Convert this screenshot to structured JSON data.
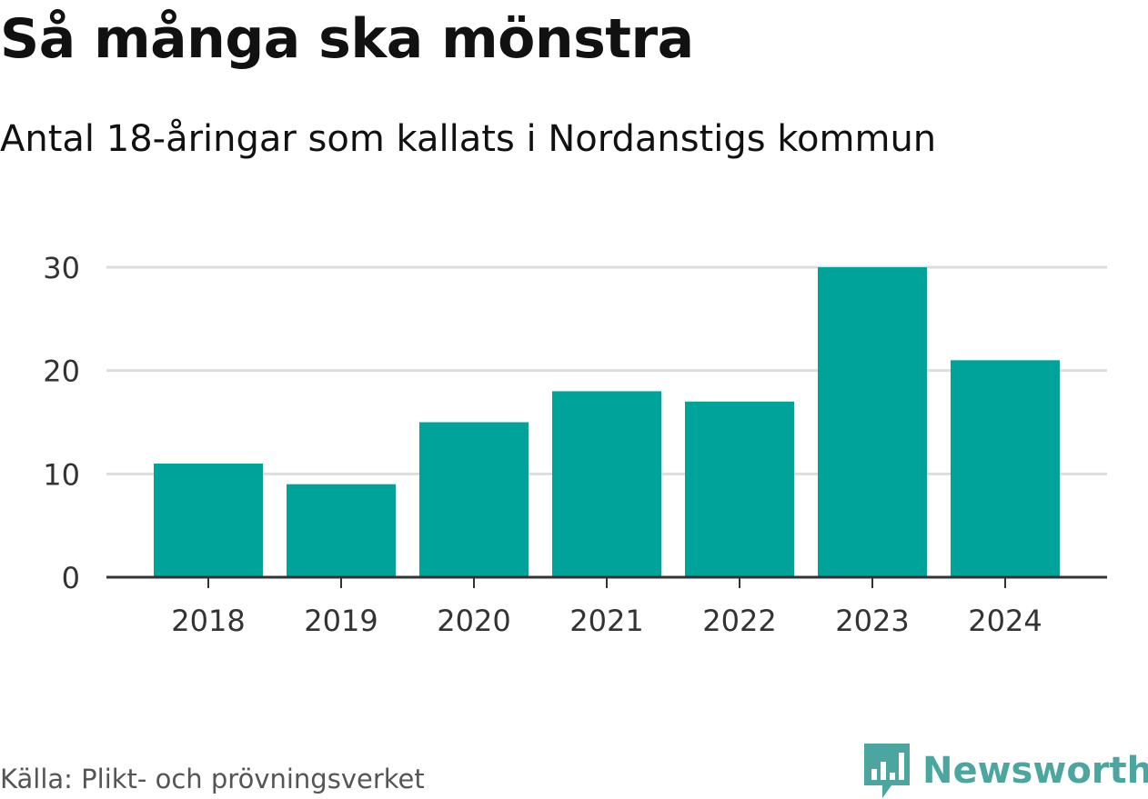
{
  "chart_data": {
    "type": "bar",
    "title": "Så många ska mönstra",
    "subtitle": "Antal 18-åringar som kallats i Nordanstigs kommun",
    "categories": [
      "2018",
      "2019",
      "2020",
      "2021",
      "2022",
      "2023",
      "2024"
    ],
    "values": [
      11,
      9,
      15,
      18,
      17,
      30,
      21
    ],
    "xlabel": "",
    "ylabel": "",
    "ylim": [
      0,
      30
    ],
    "yticks": [
      0,
      10,
      20,
      30
    ],
    "grid": true,
    "bar_color": "#00a39a",
    "gridline_color": "#dddddd",
    "axis_color": "#333333"
  },
  "footer": {
    "source": "Källa: Plikt- och prövningsverket",
    "brand": "Newsworthy",
    "brand_color": "#4aa69f",
    "brand_icon": "bar-chart-badge-icon"
  }
}
